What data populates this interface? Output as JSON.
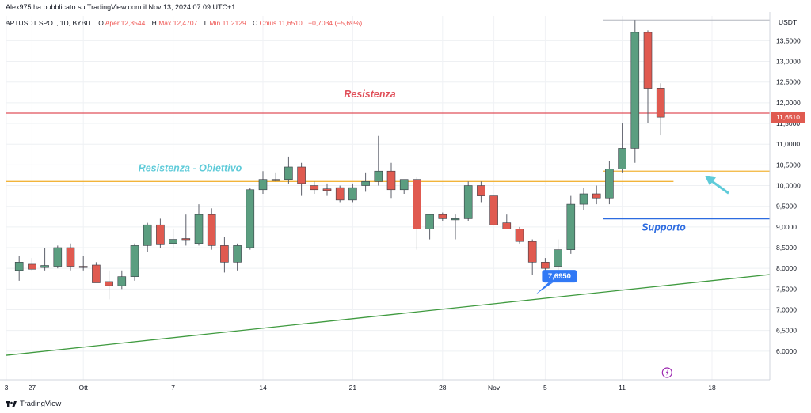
{
  "header": {
    "publish_line": "Alex975 ha pubblicato su TradingView.com il Nov 13, 2024 07:09 UTC+1"
  },
  "legend": {
    "symbol": "APTUSDT SPOT, 1D, BYBIT",
    "open_label": "O",
    "open": "Aper.12,3544",
    "high_label": "H",
    "high": "Max.12,4707",
    "low_label": "L",
    "low": "Min.11,2129",
    "close_label": "C",
    "close": "Chius.11,6510",
    "change": "−0,7034 (−5,69%)"
  },
  "footer": {
    "brand": "TradingView"
  },
  "colors": {
    "up": "#5b9e80",
    "down": "#e05a50",
    "resistance": "#e0505a",
    "target": "#f2b43a",
    "support": "#2c6be0",
    "trend": "#3f9a3f",
    "arrow": "#5fcbd9",
    "badge": "#3179f5"
  },
  "chart_data": {
    "type": "candlestick",
    "currency": "USDT",
    "ylim": [
      5.5,
      14.1
    ],
    "y_ticks": [
      "6,0000",
      "6,5000",
      "7,0000",
      "7,5000",
      "8,0000",
      "8,5000",
      "9,0000",
      "9,5000",
      "10,0000",
      "10,5000",
      "11,0000",
      "11,5000",
      "12,0000",
      "12,5000",
      "13,0000",
      "13,5000"
    ],
    "x_ticks": [
      {
        "label": "3",
        "day": 0
      },
      {
        "label": "27",
        "day": 2
      },
      {
        "label": "Ott",
        "day": 6
      },
      {
        "label": "7",
        "day": 13
      },
      {
        "label": "14",
        "day": 20
      },
      {
        "label": "21",
        "day": 27
      },
      {
        "label": "28",
        "day": 34
      },
      {
        "label": "Nov",
        "day": 38
      },
      {
        "label": "5",
        "day": 42
      },
      {
        "label": "11",
        "day": 48
      },
      {
        "label": "18",
        "day": 55
      }
    ],
    "candles": [
      {
        "day": 1,
        "o": 7.95,
        "h": 8.3,
        "l": 7.7,
        "c": 8.15
      },
      {
        "day": 2,
        "o": 8.1,
        "h": 8.25,
        "l": 7.95,
        "c": 7.98
      },
      {
        "day": 3,
        "o": 8.02,
        "h": 8.5,
        "l": 7.95,
        "c": 8.07
      },
      {
        "day": 4,
        "o": 8.05,
        "h": 8.55,
        "l": 8.0,
        "c": 8.5
      },
      {
        "day": 5,
        "o": 8.5,
        "h": 8.6,
        "l": 7.95,
        "c": 8.05
      },
      {
        "day": 6,
        "o": 8.05,
        "h": 8.3,
        "l": 7.95,
        "c": 8.02
      },
      {
        "day": 7,
        "o": 8.08,
        "h": 8.15,
        "l": 7.65,
        "c": 7.65
      },
      {
        "day": 8,
        "o": 7.68,
        "h": 7.95,
        "l": 7.25,
        "c": 7.58
      },
      {
        "day": 9,
        "o": 7.58,
        "h": 7.95,
        "l": 7.5,
        "c": 7.8
      },
      {
        "day": 10,
        "o": 7.8,
        "h": 8.6,
        "l": 7.7,
        "c": 8.55
      },
      {
        "day": 11,
        "o": 8.55,
        "h": 9.1,
        "l": 8.4,
        "c": 9.05
      },
      {
        "day": 12,
        "o": 9.05,
        "h": 9.2,
        "l": 8.5,
        "c": 8.57
      },
      {
        "day": 13,
        "o": 8.6,
        "h": 8.95,
        "l": 8.5,
        "c": 8.7
      },
      {
        "day": 14,
        "o": 8.72,
        "h": 9.3,
        "l": 8.55,
        "c": 8.7
      },
      {
        "day": 15,
        "o": 8.6,
        "h": 9.55,
        "l": 8.55,
        "c": 9.3
      },
      {
        "day": 16,
        "o": 9.3,
        "h": 9.45,
        "l": 8.45,
        "c": 8.55
      },
      {
        "day": 17,
        "o": 8.55,
        "h": 8.75,
        "l": 7.9,
        "c": 8.15
      },
      {
        "day": 18,
        "o": 8.15,
        "h": 8.6,
        "l": 7.95,
        "c": 8.55
      },
      {
        "day": 19,
        "o": 8.5,
        "h": 9.95,
        "l": 8.45,
        "c": 9.9
      },
      {
        "day": 20,
        "o": 9.9,
        "h": 10.35,
        "l": 9.8,
        "c": 10.15
      },
      {
        "day": 21,
        "o": 10.15,
        "h": 10.3,
        "l": 10.1,
        "c": 10.12
      },
      {
        "day": 22,
        "o": 10.15,
        "h": 10.7,
        "l": 10.05,
        "c": 10.45
      },
      {
        "day": 23,
        "o": 10.45,
        "h": 10.55,
        "l": 9.75,
        "c": 10.05
      },
      {
        "day": 24,
        "o": 10.0,
        "h": 10.1,
        "l": 9.8,
        "c": 9.9
      },
      {
        "day": 25,
        "o": 9.92,
        "h": 10.05,
        "l": 9.75,
        "c": 9.88
      },
      {
        "day": 26,
        "o": 9.95,
        "h": 10.0,
        "l": 9.6,
        "c": 9.65
      },
      {
        "day": 27,
        "o": 9.65,
        "h": 10.05,
        "l": 9.6,
        "c": 9.95
      },
      {
        "day": 28,
        "o": 10.0,
        "h": 10.3,
        "l": 9.85,
        "c": 10.1
      },
      {
        "day": 29,
        "o": 10.1,
        "h": 11.2,
        "l": 10.0,
        "c": 10.35
      },
      {
        "day": 30,
        "o": 10.35,
        "h": 10.55,
        "l": 9.7,
        "c": 9.9
      },
      {
        "day": 31,
        "o": 9.9,
        "h": 10.15,
        "l": 9.8,
        "c": 10.15
      },
      {
        "day": 32,
        "o": 10.15,
        "h": 10.2,
        "l": 8.45,
        "c": 8.95
      },
      {
        "day": 33,
        "o": 8.95,
        "h": 9.3,
        "l": 8.7,
        "c": 9.3
      },
      {
        "day": 34,
        "o": 9.3,
        "h": 9.35,
        "l": 9.15,
        "c": 9.2
      },
      {
        "day": 35,
        "o": 9.2,
        "h": 9.3,
        "l": 8.7,
        "c": 9.2
      },
      {
        "day": 36,
        "o": 9.2,
        "h": 10.1,
        "l": 9.15,
        "c": 10.0
      },
      {
        "day": 37,
        "o": 10.0,
        "h": 10.1,
        "l": 9.6,
        "c": 9.75
      },
      {
        "day": 38,
        "o": 9.75,
        "h": 9.75,
        "l": 9.05,
        "c": 9.05
      },
      {
        "day": 39,
        "o": 9.1,
        "h": 9.3,
        "l": 8.95,
        "c": 8.95
      },
      {
        "day": 40,
        "o": 8.95,
        "h": 9.0,
        "l": 8.6,
        "c": 8.65
      },
      {
        "day": 41,
        "o": 8.65,
        "h": 8.7,
        "l": 7.85,
        "c": 8.15
      },
      {
        "day": 42,
        "o": 8.15,
        "h": 8.25,
        "l": 7.7,
        "c": 8.0
      },
      {
        "day": 43,
        "o": 8.05,
        "h": 8.7,
        "l": 7.95,
        "c": 8.45
      },
      {
        "day": 44,
        "o": 8.45,
        "h": 9.75,
        "l": 8.35,
        "c": 9.55
      },
      {
        "day": 45,
        "o": 9.55,
        "h": 9.95,
        "l": 9.4,
        "c": 9.8
      },
      {
        "day": 46,
        "o": 9.8,
        "h": 10.0,
        "l": 9.55,
        "c": 9.7
      },
      {
        "day": 47,
        "o": 9.7,
        "h": 10.6,
        "l": 9.55,
        "c": 10.4
      },
      {
        "day": 48,
        "o": 10.4,
        "h": 11.5,
        "l": 10.3,
        "c": 10.9
      },
      {
        "day": 49,
        "o": 10.9,
        "h": 14.0,
        "l": 10.55,
        "c": 13.7
      },
      {
        "day": 50,
        "o": 13.7,
        "h": 13.75,
        "l": 11.5,
        "c": 12.35
      },
      {
        "day": 51,
        "o": 12.3544,
        "h": 12.4707,
        "l": 11.2129,
        "c": 11.651
      }
    ],
    "last_price_label": "11,6510",
    "last_price": 11.651,
    "annotations": {
      "resistance_label": "Resistenza",
      "resistance_level": 11.75,
      "target_label": "Resistenza - Obiettivo",
      "target_level": 10.1,
      "target_level_right": 10.35,
      "support_label": "Supporto",
      "support_level": 9.2,
      "low_badge": "7,6950",
      "low_level": 7.695,
      "trend_start": {
        "day": 0,
        "price": 5.9
      },
      "trend_end": {
        "day": 58,
        "price": 7.85
      }
    }
  }
}
